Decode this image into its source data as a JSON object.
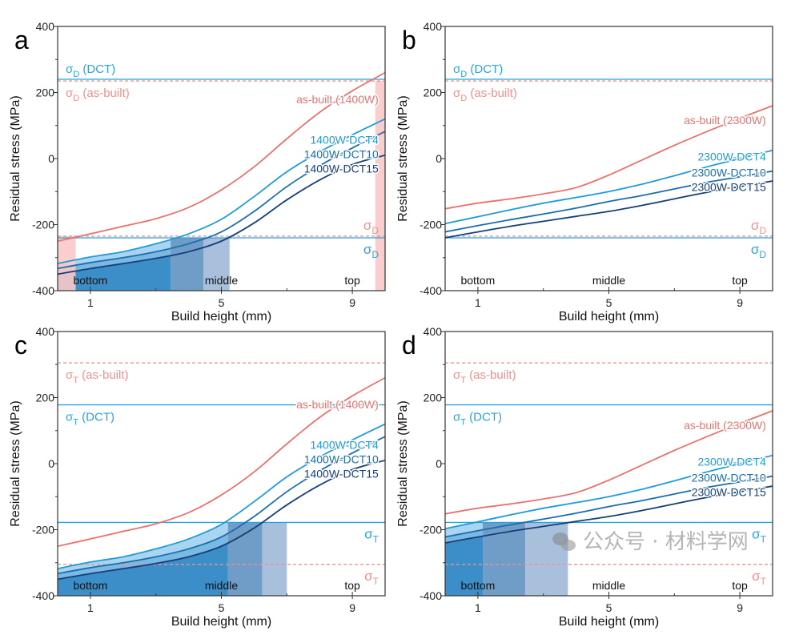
{
  "colors": {
    "as_built": "#e8736e",
    "dct4": "#1f9bd6",
    "dct10": "#1b6eae",
    "dct15": "#163f78",
    "ref_blue": "#2aa4df",
    "ref_red": "#f0918c",
    "pink_band": "#f9c9c6",
    "fill_light": "#a9d5f1",
    "fill_mid": "#79b9e3",
    "fill_dark": "#3b8ec7",
    "band_a": "#6f9dc7",
    "band_b": "#a8c0dc"
  },
  "watermark": "公众号 · 材料学网",
  "chart_data": [
    {
      "panel_label": "a",
      "type": "line",
      "xlabel": "Build height (mm)",
      "ylabel": "Residual stress (MPa)",
      "xlim": [
        0,
        10
      ],
      "ylim": [
        -400,
        400
      ],
      "xticks": [
        1,
        5,
        9
      ],
      "xminor": [
        3,
        7
      ],
      "yticks": [
        -400,
        -200,
        0,
        200,
        400
      ],
      "yminor": [
        -300,
        -100,
        100,
        300
      ],
      "region_labels": [
        {
          "text": "bottom",
          "x": 1
        },
        {
          "text": "middle",
          "x": 5
        },
        {
          "text": "top",
          "x": 9
        }
      ],
      "x": [
        0,
        1,
        2,
        3,
        4,
        5,
        6,
        7,
        8,
        9,
        10
      ],
      "series": [
        {
          "name": "as-built (1400W)",
          "color_key": "as_built",
          "y": [
            -250,
            -228,
            -205,
            -182,
            -148,
            -95,
            -25,
            60,
            140,
            205,
            260
          ]
        },
        {
          "name": "1400W-DCT4",
          "color_key": "dct4",
          "y": [
            -318,
            -298,
            -282,
            -258,
            -228,
            -184,
            -115,
            -40,
            20,
            72,
            120
          ]
        },
        {
          "name": "1400W-DCT10",
          "color_key": "dct10",
          "y": [
            -333,
            -315,
            -300,
            -282,
            -258,
            -222,
            -160,
            -85,
            -22,
            32,
            82
          ]
        },
        {
          "name": "1400W-DCT15",
          "color_key": "dct15",
          "y": [
            -350,
            -333,
            -318,
            -302,
            -282,
            -250,
            -195,
            -125,
            -65,
            -18,
            10
          ]
        }
      ],
      "reference_lines": [
        {
          "symbol": "σ",
          "sub": "D",
          "suffix": " (DCT)",
          "value": 240,
          "color_key": "ref_blue",
          "style": "solid"
        },
        {
          "symbol": "σ",
          "sub": "D",
          "suffix": " (as-built)",
          "value": 235,
          "color_key": "ref_red",
          "style": "dashed"
        },
        {
          "symbol": "σ",
          "sub": "D",
          "suffix": "",
          "value": -235,
          "color_key": "ref_red",
          "style": "dashed"
        },
        {
          "symbol": "σ",
          "sub": "D",
          "suffix": "",
          "value": -240,
          "color_key": "ref_blue",
          "style": "solid"
        }
      ],
      "shaded_regions": [
        {
          "x": [
            0,
            0.55
          ],
          "y": [
            -400,
            -235
          ],
          "color_key": "pink_band"
        },
        {
          "x": [
            9.7,
            10
          ],
          "y": [
            -400,
            235
          ],
          "color_key": "pink_band"
        }
      ],
      "threshold": -240,
      "crossings": [
        3.45,
        4.45,
        5.25
      ]
    },
    {
      "panel_label": "b",
      "type": "line",
      "xlabel": "Build height (mm)",
      "ylabel": "Residual stress (MPa)",
      "xlim": [
        0,
        10
      ],
      "ylim": [
        -400,
        400
      ],
      "xticks": [
        1,
        5,
        9
      ],
      "xminor": [
        3,
        7
      ],
      "yticks": [
        -400,
        -200,
        0,
        200,
        400
      ],
      "yminor": [
        -300,
        -100,
        100,
        300
      ],
      "region_labels": [
        {
          "text": "bottom",
          "x": 1
        },
        {
          "text": "middle",
          "x": 5
        },
        {
          "text": "top",
          "x": 9
        }
      ],
      "x": [
        0,
        1,
        2,
        3,
        4,
        5,
        6,
        7,
        8,
        9,
        10
      ],
      "series": [
        {
          "name": "as-built (2300W)",
          "color_key": "as_built",
          "y": [
            -152,
            -135,
            -122,
            -107,
            -88,
            -50,
            -5,
            40,
            82,
            122,
            160
          ]
        },
        {
          "name": "2300W-DCT4",
          "color_key": "dct4",
          "y": [
            -197,
            -176,
            -155,
            -135,
            -118,
            -100,
            -78,
            -52,
            -25,
            0,
            25
          ]
        },
        {
          "name": "2300W-DCT10",
          "color_key": "dct10",
          "y": [
            -222,
            -203,
            -185,
            -168,
            -150,
            -130,
            -112,
            -92,
            -72,
            -55,
            -38
          ]
        },
        {
          "name": "2300W-DCT15",
          "color_key": "dct15",
          "y": [
            -240,
            -222,
            -205,
            -190,
            -175,
            -160,
            -142,
            -122,
            -102,
            -85,
            -68
          ]
        }
      ],
      "reference_lines": [
        {
          "symbol": "σ",
          "sub": "D",
          "suffix": " (DCT)",
          "value": 240,
          "color_key": "ref_blue",
          "style": "solid"
        },
        {
          "symbol": "σ",
          "sub": "D",
          "suffix": " (as-built)",
          "value": 235,
          "color_key": "ref_red",
          "style": "dashed"
        },
        {
          "symbol": "σ",
          "sub": "D",
          "suffix": "",
          "value": -235,
          "color_key": "ref_red",
          "style": "dashed"
        },
        {
          "symbol": "σ",
          "sub": "D",
          "suffix": "",
          "value": -240,
          "color_key": "ref_blue",
          "style": "solid"
        }
      ],
      "shaded_regions": [],
      "threshold": null,
      "crossings": []
    },
    {
      "panel_label": "c",
      "type": "line",
      "xlabel": "Build height (mm)",
      "ylabel": "Residual stress (MPa)",
      "xlim": [
        0,
        10
      ],
      "ylim": [
        -400,
        400
      ],
      "xticks": [
        1,
        5,
        9
      ],
      "xminor": [
        3,
        7
      ],
      "yticks": [
        -400,
        -200,
        0,
        200,
        400
      ],
      "yminor": [
        -300,
        -100,
        100,
        300
      ],
      "region_labels": [
        {
          "text": "bottom",
          "x": 1
        },
        {
          "text": "middle",
          "x": 5
        },
        {
          "text": "top",
          "x": 9
        }
      ],
      "x": [
        0,
        1,
        2,
        3,
        4,
        5,
        6,
        7,
        8,
        9,
        10
      ],
      "series": [
        {
          "name": "as-built (1400W)",
          "color_key": "as_built",
          "y": [
            -250,
            -228,
            -205,
            -182,
            -148,
            -95,
            -25,
            60,
            140,
            205,
            260
          ]
        },
        {
          "name": "1400W-DCT4",
          "color_key": "dct4",
          "y": [
            -318,
            -298,
            -282,
            -258,
            -228,
            -184,
            -115,
            -40,
            20,
            72,
            120
          ]
        },
        {
          "name": "1400W-DCT10",
          "color_key": "dct10",
          "y": [
            -333,
            -315,
            -300,
            -282,
            -258,
            -222,
            -160,
            -85,
            -22,
            32,
            82
          ]
        },
        {
          "name": "1400W-DCT15",
          "color_key": "dct15",
          "y": [
            -350,
            -333,
            -318,
            -302,
            -282,
            -250,
            -195,
            -125,
            -65,
            -18,
            10
          ]
        }
      ],
      "reference_lines": [
        {
          "symbol": "σ",
          "sub": "T",
          "suffix": " (as-built)",
          "value": 305,
          "color_key": "ref_red",
          "style": "dashed"
        },
        {
          "symbol": "σ",
          "sub": "T",
          "suffix": " (DCT)",
          "value": 178,
          "color_key": "ref_blue",
          "style": "solid"
        },
        {
          "symbol": "σ",
          "sub": "T",
          "suffix": "",
          "value": -178,
          "color_key": "ref_blue",
          "style": "solid"
        },
        {
          "symbol": "σ",
          "sub": "T",
          "suffix": "",
          "value": -305,
          "color_key": "ref_red",
          "style": "dashed"
        }
      ],
      "shaded_regions": [],
      "threshold": -178,
      "crossings": [
        5.2,
        6.25,
        7.0
      ]
    },
    {
      "panel_label": "d",
      "type": "line",
      "xlabel": "Build height (mm)",
      "ylabel": "Residual stress (MPa)",
      "xlim": [
        0,
        10
      ],
      "ylim": [
        -400,
        400
      ],
      "xticks": [
        1,
        5,
        9
      ],
      "xminor": [
        3,
        7
      ],
      "yticks": [
        -400,
        -200,
        0,
        200,
        400
      ],
      "yminor": [
        -300,
        -100,
        100,
        300
      ],
      "region_labels": [
        {
          "text": "bottom",
          "x": 1
        },
        {
          "text": "middle",
          "x": 5
        },
        {
          "text": "top",
          "x": 9
        }
      ],
      "x": [
        0,
        1,
        2,
        3,
        4,
        5,
        6,
        7,
        8,
        9,
        10
      ],
      "series": [
        {
          "name": "as-built (2300W)",
          "color_key": "as_built",
          "y": [
            -152,
            -135,
            -122,
            -107,
            -88,
            -50,
            -5,
            40,
            82,
            122,
            160
          ]
        },
        {
          "name": "2300W-DCT4",
          "color_key": "dct4",
          "y": [
            -197,
            -176,
            -155,
            -135,
            -118,
            -100,
            -78,
            -52,
            -25,
            0,
            25
          ]
        },
        {
          "name": "2300W-DCT10",
          "color_key": "dct10",
          "y": [
            -222,
            -203,
            -185,
            -168,
            -150,
            -130,
            -112,
            -92,
            -72,
            -55,
            -38
          ]
        },
        {
          "name": "2300W-DCT15",
          "color_key": "dct15",
          "y": [
            -240,
            -222,
            -205,
            -190,
            -175,
            -160,
            -142,
            -122,
            -102,
            -85,
            -68
          ]
        }
      ],
      "reference_lines": [
        {
          "symbol": "σ",
          "sub": "T",
          "suffix": " (as-built)",
          "value": 305,
          "color_key": "ref_red",
          "style": "dashed"
        },
        {
          "symbol": "σ",
          "sub": "T",
          "suffix": " (DCT)",
          "value": 178,
          "color_key": "ref_blue",
          "style": "solid"
        },
        {
          "symbol": "σ",
          "sub": "T",
          "suffix": "",
          "value": -178,
          "color_key": "ref_blue",
          "style": "solid"
        },
        {
          "symbol": "σ",
          "sub": "T",
          "suffix": "",
          "value": -305,
          "color_key": "ref_red",
          "style": "dashed"
        }
      ],
      "shaded_regions": [],
      "threshold": -178,
      "crossings": [
        1.15,
        2.45,
        3.75
      ]
    }
  ]
}
